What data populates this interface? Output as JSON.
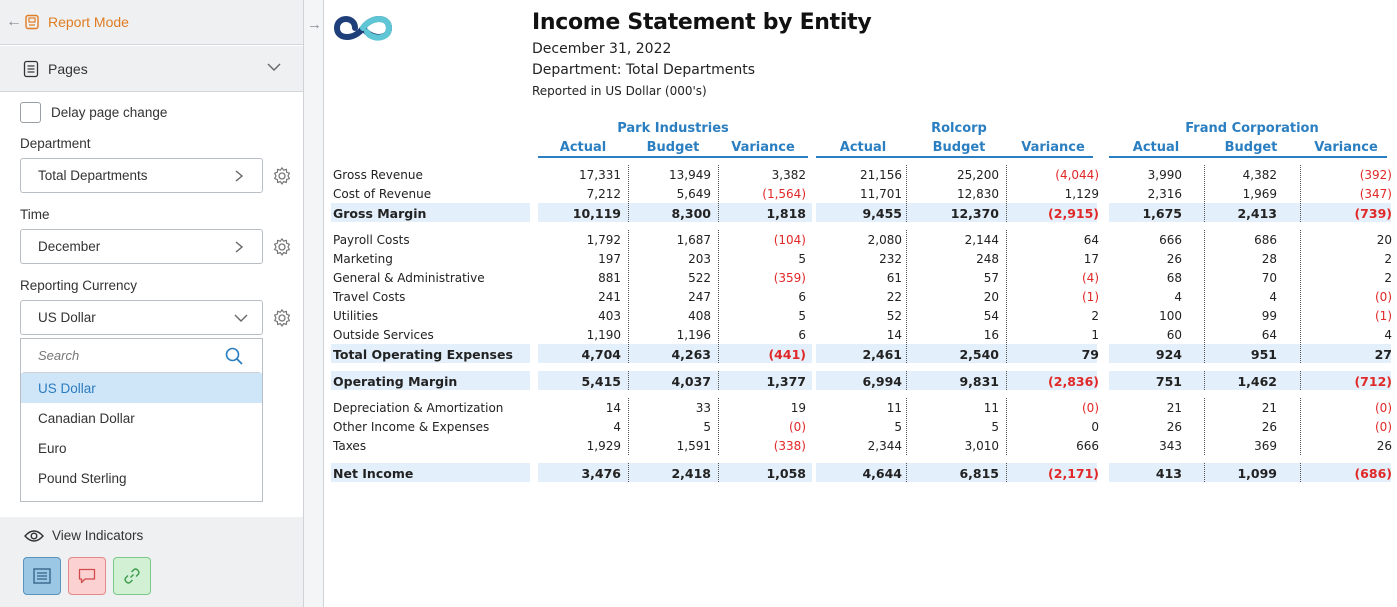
{
  "left_panel": {
    "back_label": "←",
    "mode_label": "Report Mode",
    "pages_label": "Pages",
    "delay_label": "Delay page change",
    "department": {
      "label": "Department",
      "value": "Total Departments"
    },
    "time": {
      "label": "Time",
      "value": "December"
    },
    "currency": {
      "label": "Reporting Currency",
      "value": "US Dollar",
      "search_placeholder": "Search",
      "options": [
        "US Dollar",
        "Canadian Dollar",
        "Euro",
        "Pound Sterling"
      ],
      "selected": "US Dollar"
    },
    "indicators_label": "View Indicators",
    "forward_label": "→"
  },
  "report": {
    "title": "Income Statement by Entity",
    "date": "December 31, 2022",
    "department": "Department: Total Departments",
    "note": "Reported in US Dollar (000's)",
    "entities": [
      "Park Industries",
      "Rolcorp",
      "Frand Corporation"
    ],
    "columns": [
      "Actual",
      "Budget",
      "Variance"
    ],
    "rows": [
      {
        "label": "Gross Revenue",
        "bold": false,
        "values": [
          "17,331",
          "13,949",
          "3,382",
          "21,156",
          "25,200",
          "(4,044)",
          "3,990",
          "4,382",
          "(392)"
        ]
      },
      {
        "label": "Cost of Revenue",
        "bold": false,
        "values": [
          "7,212",
          "5,649",
          "(1,564)",
          "11,701",
          "12,830",
          "1,129",
          "2,316",
          "1,969",
          "(347)"
        ]
      },
      {
        "label": "Gross Margin",
        "bold": true,
        "values": [
          "10,119",
          "8,300",
          "1,818",
          "9,455",
          "12,370",
          "(2,915)",
          "1,675",
          "2,413",
          "(739)"
        ]
      },
      {
        "label": "Payroll Costs",
        "bold": false,
        "values": [
          "1,792",
          "1,687",
          "(104)",
          "2,080",
          "2,144",
          "64",
          "666",
          "686",
          "20"
        ]
      },
      {
        "label": "Marketing",
        "bold": false,
        "values": [
          "197",
          "203",
          "5",
          "232",
          "248",
          "17",
          "26",
          "28",
          "2"
        ]
      },
      {
        "label": "General & Administrative",
        "bold": false,
        "values": [
          "881",
          "522",
          "(359)",
          "61",
          "57",
          "(4)",
          "68",
          "70",
          "2"
        ]
      },
      {
        "label": "Travel Costs",
        "bold": false,
        "values": [
          "241",
          "247",
          "6",
          "22",
          "20",
          "(1)",
          "4",
          "4",
          "(0)"
        ]
      },
      {
        "label": "Utilities",
        "bold": false,
        "values": [
          "403",
          "408",
          "5",
          "52",
          "54",
          "2",
          "100",
          "99",
          "(1)"
        ]
      },
      {
        "label": "Outside Services",
        "bold": false,
        "values": [
          "1,190",
          "1,196",
          "6",
          "14",
          "16",
          "1",
          "60",
          "64",
          "4"
        ]
      },
      {
        "label": "Total Operating Expenses",
        "bold": true,
        "values": [
          "4,704",
          "4,263",
          "(441)",
          "2,461",
          "2,540",
          "79",
          "924",
          "951",
          "27"
        ]
      },
      {
        "label": "Operating Margin",
        "bold": true,
        "values": [
          "5,415",
          "4,037",
          "1,377",
          "6,994",
          "9,831",
          "(2,836)",
          "751",
          "1,462",
          "(712)"
        ]
      },
      {
        "label": "Depreciation & Amortization",
        "bold": false,
        "values": [
          "14",
          "33",
          "19",
          "11",
          "11",
          "(0)",
          "21",
          "21",
          "(0)"
        ]
      },
      {
        "label": "Other Income & Expenses",
        "bold": false,
        "values": [
          "4",
          "5",
          "(0)",
          "5",
          "5",
          "0",
          "26",
          "26",
          "(0)"
        ]
      },
      {
        "label": "Taxes",
        "bold": false,
        "values": [
          "1,929",
          "1,591",
          "(338)",
          "2,344",
          "3,010",
          "666",
          "343",
          "369",
          "26"
        ]
      },
      {
        "label": "Net Income",
        "bold": true,
        "values": [
          "3,476",
          "2,418",
          "1,058",
          "4,644",
          "6,815",
          "(2,171)",
          "413",
          "1,099",
          "(686)"
        ]
      }
    ]
  },
  "colors": {
    "accent": "#2b7fc1",
    "mode": "#e07c22",
    "negative": "#e02828",
    "highlight": "#e3effa"
  }
}
